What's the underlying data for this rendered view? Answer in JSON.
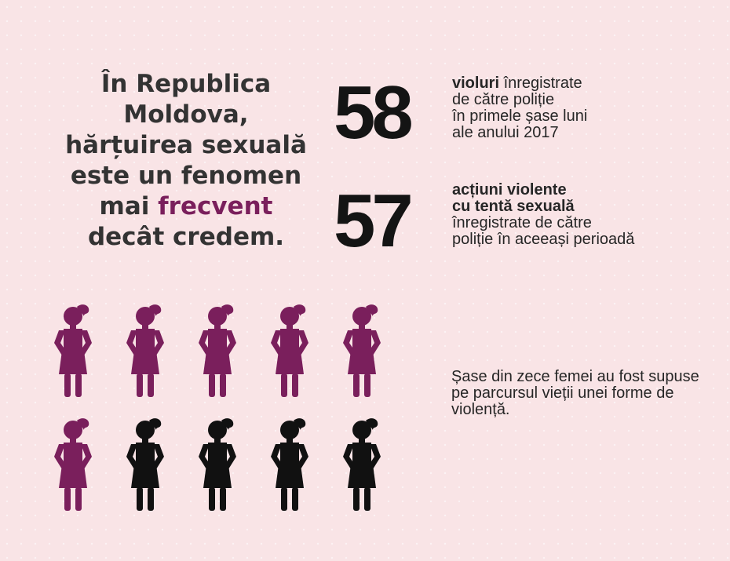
{
  "headline": {
    "line1": "În Republica",
    "line2": "Moldova,",
    "line3": "hărțuirea sexuală",
    "line4": "este un fenomen",
    "line5_prefix": "mai ",
    "line5_accent": "frecvent",
    "line6": "decât credem."
  },
  "stats": [
    {
      "number": "58",
      "bold": "violuri",
      "text_after_bold": " înregistrate\nde către poliție\nîn primele șase luni\nale anului 2017"
    },
    {
      "number": "57",
      "bold": "acțiuni violente\ncu tentă sexuală",
      "text_after_bold": "\nînregistrate de către\npoliție în aceeași perioadă"
    }
  ],
  "figures": {
    "total": 10,
    "highlighted": 6,
    "highlight_color": "#7a1f5c",
    "other_color": "#111111",
    "icon": "woman-icon"
  },
  "note": "Șase din zece femei au fost supuse pe parcursul vieții unei forme de violență.",
  "colors": {
    "background": "#f9e4e6",
    "accent": "#7a1f5c",
    "text": "#333333"
  }
}
